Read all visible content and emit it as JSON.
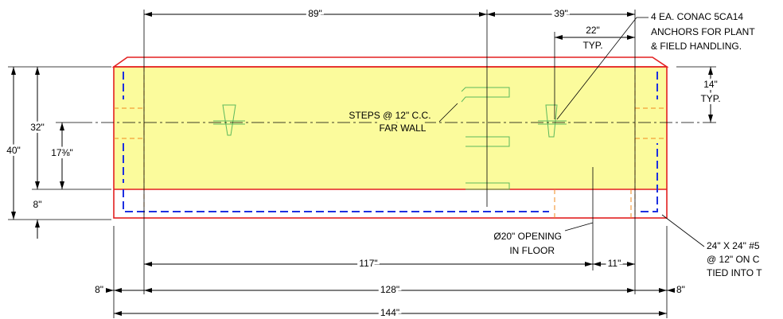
{
  "title_note": {
    "lines": [
      "4 EA. CONAC 5CA14",
      "ANCHORS FOR PLANT",
      "& FIELD HANDLING."
    ]
  },
  "rebar_note": {
    "lines": [
      "24\" X 24\" #5",
      "@ 12\" ON C",
      "TIED INTO T"
    ]
  },
  "steps_note": {
    "lines": [
      "STEPS @ 12\" C.C.",
      "FAR WALL"
    ]
  },
  "opening_note": {
    "lines": [
      "Ø20\" OPENING",
      "IN FLOOR"
    ]
  },
  "dimensions": {
    "top_left": "89\"",
    "top_right": "39\"",
    "anchor_spacing": "22\"",
    "anchor_typ": "TYP.",
    "right_height": "14\"",
    "right_typ": "TYP.",
    "overall_height": "40\"",
    "wall_height": "32\"",
    "centerline_height": "17⅜\"",
    "floor_height": "8\"",
    "to_opening": "117\"",
    "opening_offset": "11\"",
    "inner_length": "128\"",
    "left_wall": "8\"",
    "right_wall": "8\"",
    "overall_length": "144\""
  }
}
